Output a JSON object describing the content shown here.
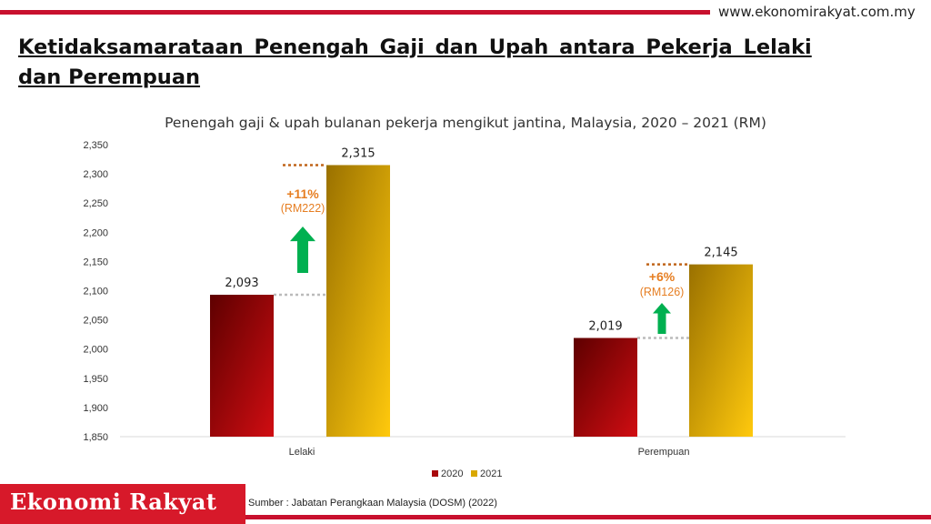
{
  "header": {
    "website": "www.ekonomirakyat.com.my",
    "title_line1": "Ketidaksamarataan Penengah Gaji dan Upah antara Pekerja Lelaki",
    "title_line2": "dan Perempuan"
  },
  "chart_data": {
    "type": "bar",
    "title": "Penengah gaji & upah bulanan pekerja mengikut jantina, Malaysia, 2020 – 2021 (RM)",
    "categories": [
      "Lelaki",
      "Perempuan"
    ],
    "series": [
      {
        "name": "2020",
        "values": [
          2093,
          2019
        ],
        "labels": [
          "2,093",
          "2,019"
        ],
        "color": "#a8080c"
      },
      {
        "name": "2021",
        "values": [
          2315,
          2145
        ],
        "labels": [
          "2,315",
          "2,145"
        ],
        "color": "#d4a300"
      }
    ],
    "ylim": [
      1850,
      2350
    ],
    "yticks": [
      1850,
      1900,
      1950,
      2000,
      2050,
      2100,
      2150,
      2200,
      2250,
      2300,
      2350
    ],
    "ytick_labels": [
      "1,850",
      "1,900",
      "1,950",
      "2,000",
      "2,050",
      "2,100",
      "2,150",
      "2,200",
      "2,250",
      "2,300",
      "2,350"
    ],
    "grid": false,
    "legend_position": "bottom",
    "annotations": [
      {
        "category": "Lelaki",
        "percent": "+11%",
        "amount": "(RM222)"
      },
      {
        "category": "Perempuan",
        "percent": "+6%",
        "amount": "(RM126)"
      }
    ],
    "colors": {
      "increase_arrow": "#00b050",
      "annotation_text": "#e67e22",
      "ref_line_2021": "#c0651a",
      "ref_line_2020": "#bbbbbb"
    }
  },
  "footer": {
    "brand": "Ekonomi Rakyat",
    "source": "Sumber : Jabatan Perangkaan Malaysia (DOSM) (2022)"
  }
}
